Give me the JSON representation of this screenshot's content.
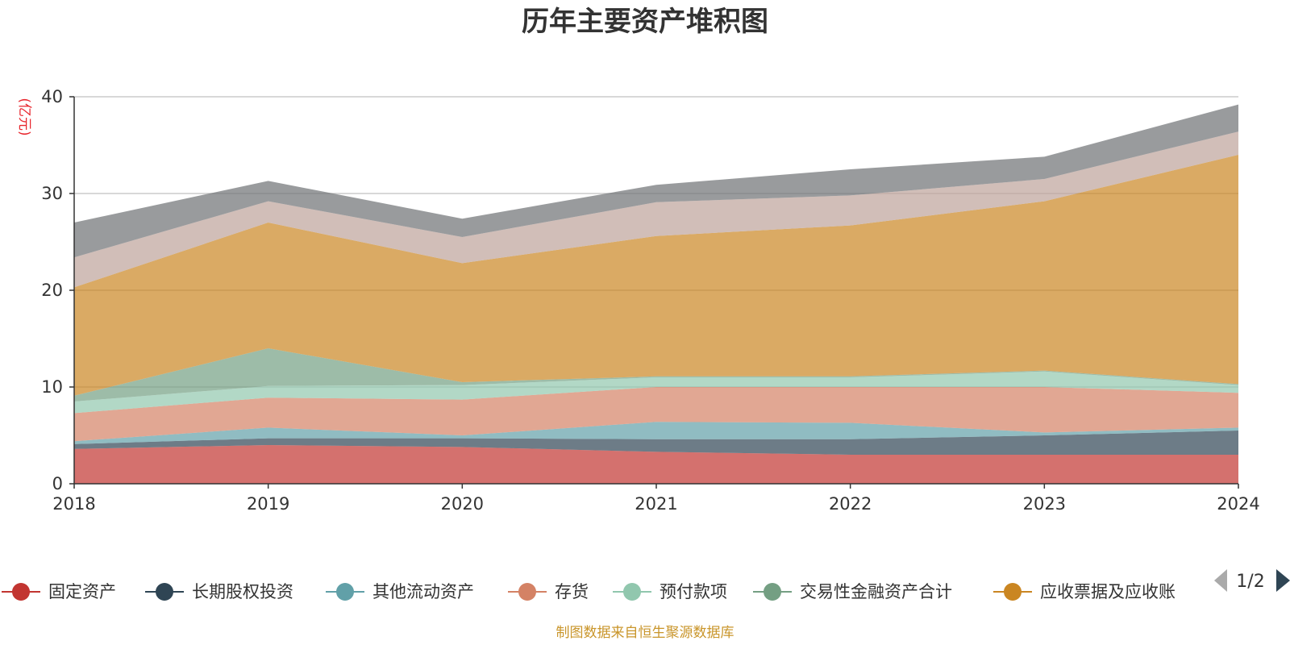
{
  "chart_data": {
    "type": "area",
    "stacked": true,
    "title": "历年主要资产堆积图",
    "unit_label": "(亿元)",
    "source": "制图数据来自恒生聚源数据库",
    "x": [
      "2018",
      "2019",
      "2020",
      "2021",
      "2022",
      "2023",
      "2024"
    ],
    "ylim": [
      0,
      40
    ],
    "yticks": [
      0,
      10,
      20,
      30,
      40
    ],
    "grid": true,
    "legend_position": "bottom",
    "legend_page": "1/2",
    "series": [
      {
        "name": "固定资产",
        "color": "#c23531",
        "values": [
          3.6,
          4.0,
          3.8,
          3.3,
          3.0,
          3.0,
          3.0
        ]
      },
      {
        "name": "长期股权投资",
        "color": "#2f4554",
        "values": [
          0.5,
          0.7,
          0.9,
          1.3,
          1.6,
          2.0,
          2.5
        ]
      },
      {
        "name": "其他流动资产",
        "color": "#61a0a8",
        "values": [
          0.3,
          1.1,
          0.3,
          1.8,
          1.7,
          0.3,
          0.3
        ]
      },
      {
        "name": "存货",
        "color": "#d48265",
        "values": [
          2.9,
          3.1,
          3.7,
          3.6,
          3.7,
          4.7,
          3.6
        ]
      },
      {
        "name": "预付款项",
        "color": "#91c7ae",
        "values": [
          1.2,
          1.2,
          1.5,
          1.0,
          1.0,
          1.6,
          0.8
        ]
      },
      {
        "name": "交易性金融资产合计",
        "color": "#749f83",
        "values": [
          0.6,
          3.9,
          0.3,
          0.1,
          0.1,
          0.1,
          0.1
        ]
      },
      {
        "name": "应收票据及应收账",
        "color": "#ca8622",
        "values": [
          11.2,
          13.0,
          12.3,
          14.5,
          15.6,
          17.5,
          23.7
        ]
      },
      {
        "name": "",
        "color": "#bda29a",
        "values": [
          3.1,
          2.2,
          2.7,
          3.5,
          3.1,
          2.3,
          2.4
        ]
      },
      {
        "name": "",
        "color": "#6e7074",
        "values": [
          3.6,
          2.1,
          1.9,
          1.8,
          2.7,
          2.3,
          2.8
        ]
      }
    ]
  }
}
